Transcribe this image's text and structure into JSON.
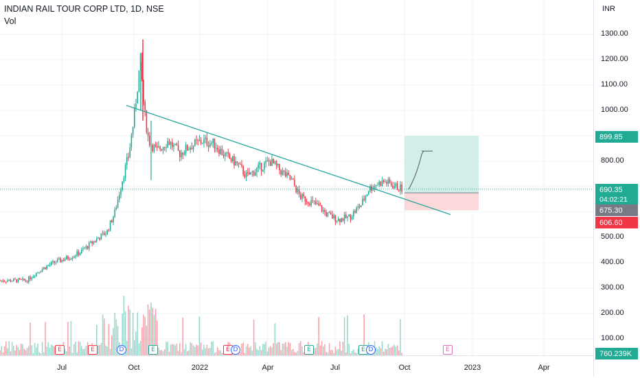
{
  "header": {
    "symbol_line": "INDIAN RAIL TOUR CORP LTD, 1D, NSE",
    "volume_label": "Vol"
  },
  "price_axis": {
    "unit": "INR",
    "labels": [
      "1300.00",
      "1200.00",
      "1100.00",
      "1000.00",
      "800.00",
      "500.00",
      "400.00",
      "300.00",
      "200.00",
      "100.00"
    ]
  },
  "time_axis": {
    "labels": [
      "Jul",
      "Oct",
      "2022",
      "Apr",
      "Jul",
      "Oct",
      "2023",
      "Apr"
    ]
  },
  "price_tags": {
    "target": {
      "text": "899.85",
      "color": "#22ab94"
    },
    "last": {
      "text": "690.35",
      "color": "#22ab94"
    },
    "countdown": {
      "text": "04:02:21",
      "color": "#22ab94"
    },
    "entry": {
      "text": "675.30",
      "color": "#787b86"
    },
    "stop": {
      "text": "606.60",
      "color": "#f23645"
    },
    "volume": {
      "text": "760.239K",
      "color": "#22ab94"
    }
  },
  "events": [
    {
      "type": "earnings",
      "label": "E"
    },
    {
      "type": "earnings",
      "label": "E"
    },
    {
      "type": "dividend",
      "label": "D"
    },
    {
      "type": "earnings-green",
      "label": "E"
    },
    {
      "type": "earnings",
      "label": "E"
    },
    {
      "type": "dividend",
      "label": "D"
    },
    {
      "type": "earnings-green",
      "label": "E"
    },
    {
      "type": "earnings-green",
      "label": "E"
    },
    {
      "type": "dividend",
      "label": "D"
    },
    {
      "type": "earnings-future",
      "label": "E"
    }
  ],
  "chart_data": {
    "type": "candlestick",
    "title": "INDIAN RAIL TOUR CORP LTD, 1D, NSE",
    "ylim": [
      70,
      1400
    ],
    "colors": {
      "up": "#22ab94",
      "down": "#f23645",
      "trendline": "#26a69a",
      "profit_zone": "#d1eee8",
      "loss_zone": "#fbd8da"
    },
    "close_path": [
      [
        "2021-05-15",
        330
      ],
      [
        "2021-06-01",
        370
      ],
      [
        "2021-06-20",
        400
      ],
      [
        "2021-07-10",
        420
      ],
      [
        "2021-07-25",
        440
      ],
      [
        "2021-08-15",
        490
      ],
      [
        "2021-08-30",
        520
      ],
      [
        "2021-09-10",
        600
      ],
      [
        "2021-09-20",
        730
      ],
      [
        "2021-09-28",
        820
      ],
      [
        "2021-10-05",
        960
      ],
      [
        "2021-10-14",
        1200
      ],
      [
        "2021-10-19",
        1000
      ],
      [
        "2021-10-25",
        880
      ],
      [
        "2021-11-05",
        840
      ],
      [
        "2021-11-20",
        880
      ],
      [
        "2021-12-05",
        830
      ],
      [
        "2021-12-20",
        860
      ],
      [
        "2022-01-05",
        880
      ],
      [
        "2022-01-20",
        870
      ],
      [
        "2022-02-05",
        820
      ],
      [
        "2022-02-20",
        790
      ],
      [
        "2022-03-05",
        740
      ],
      [
        "2022-03-20",
        770
      ],
      [
        "2022-04-05",
        800
      ],
      [
        "2022-04-20",
        760
      ],
      [
        "2022-05-05",
        720
      ],
      [
        "2022-05-15",
        660
      ],
      [
        "2022-05-30",
        640
      ],
      [
        "2022-06-10",
        620
      ],
      [
        "2022-06-20",
        590
      ],
      [
        "2022-07-05",
        570
      ],
      [
        "2022-07-20",
        580
      ],
      [
        "2022-08-05",
        630
      ],
      [
        "2022-08-15",
        690
      ],
      [
        "2022-08-25",
        710
      ],
      [
        "2022-09-05",
        720
      ],
      [
        "2022-09-20",
        700
      ],
      [
        "2022-09-30",
        690
      ]
    ],
    "trendline": [
      [
        "2021-10-01",
        1020
      ],
      [
        "2022-10-20",
        590
      ]
    ],
    "position": {
      "entry": 675.3,
      "target": 899.85,
      "stop": 606.6,
      "last": 690.35
    }
  }
}
